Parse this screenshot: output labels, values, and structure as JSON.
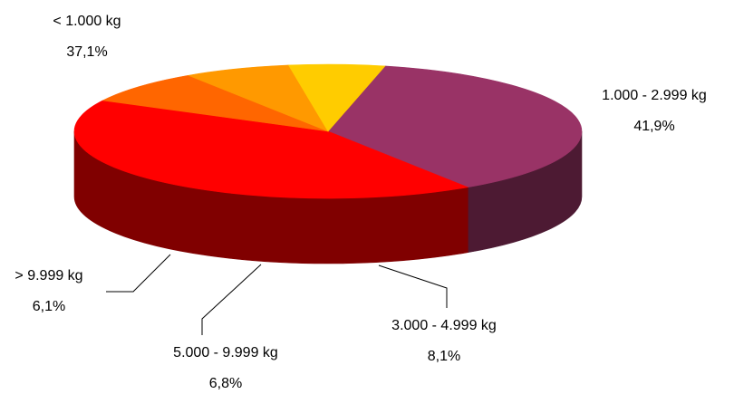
{
  "chart_data": {
    "type": "pie",
    "style": "3d",
    "title": "",
    "slices": [
      {
        "label": "< 1.000 kg",
        "percent_label": "37,1%",
        "value": 37.1,
        "color": "#993366"
      },
      {
        "label": "1.000 - 2.999 kg",
        "percent_label": "41,9%",
        "value": 41.9,
        "color": "#ff0000"
      },
      {
        "label": "3.000 - 4.999 kg",
        "percent_label": "8,1%",
        "value": 8.1,
        "color": "#ff6600"
      },
      {
        "label": "5.000 - 9.999 kg",
        "percent_label": "6,8%",
        "value": 6.8,
        "color": "#ff9900"
      },
      {
        "label": "> 9.999 kg",
        "percent_label": "6,1%",
        "value": 6.1,
        "color": "#ffcc00"
      }
    ]
  }
}
